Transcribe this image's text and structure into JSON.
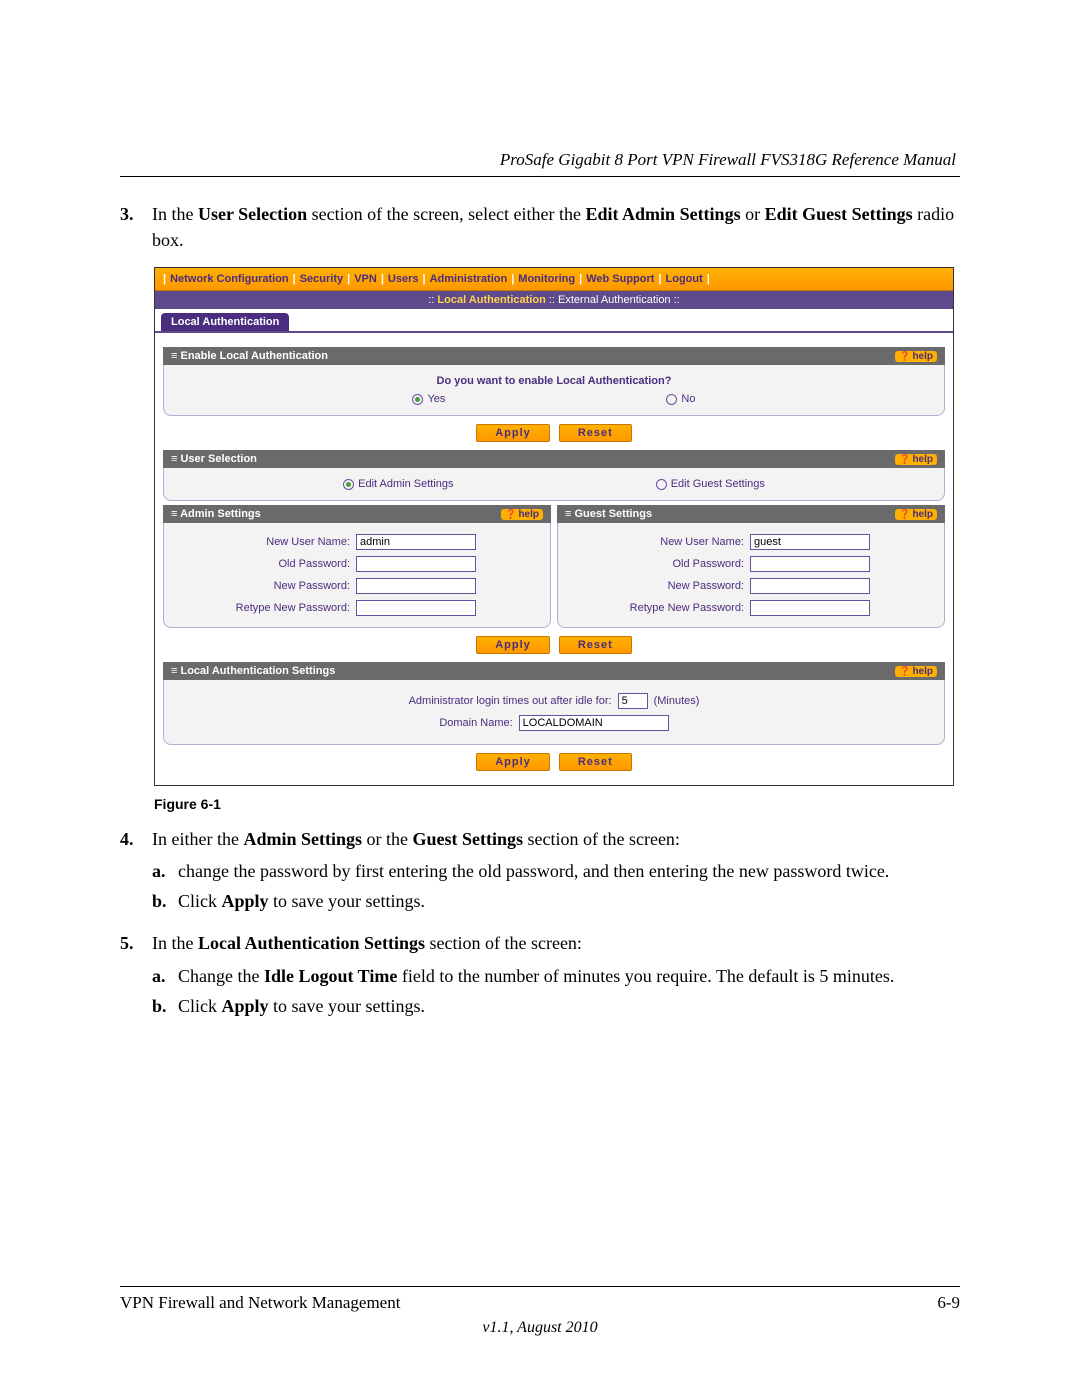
{
  "docTitle": "ProSafe Gigabit 8 Port VPN Firewall FVS318G Reference Manual",
  "step3": {
    "num": "3.",
    "prefix": "In the ",
    "b1": "User Selection",
    "mid1": " section of the screen, select either the ",
    "b2": "Edit Admin Settings",
    "mid2": " or ",
    "b3": "Edit Guest Settings",
    "suffix": " radio box."
  },
  "nav": {
    "items": [
      "Network Configuration",
      "Security",
      "VPN",
      "Users",
      "Administration",
      "Monitoring",
      "Web Support",
      "Logout"
    ],
    "sub_prefix": ":: ",
    "sub_active": "Local Authentication",
    "sub_sep": " :: ",
    "sub_other": "External Authentication",
    "sub_suffix": " ::",
    "tab": "Local Authentication"
  },
  "sec_enable": {
    "title": "Enable Local Authentication",
    "help": "help",
    "question": "Do you want to enable Local Authentication?",
    "yes": "Yes",
    "no": "No"
  },
  "buttons": {
    "apply": "Apply",
    "reset": "Reset"
  },
  "sec_user": {
    "title": "User Selection",
    "help": "help",
    "opt1": "Edit Admin Settings",
    "opt2": "Edit Guest Settings"
  },
  "sec_admin": {
    "title": "Admin Settings",
    "help": "help",
    "f1": "New User Name:",
    "v1": "admin",
    "f2": "Old Password:",
    "f3": "New Password:",
    "f4": "Retype New Password:"
  },
  "sec_guest": {
    "title": "Guest Settings",
    "help": "help",
    "f1": "New User Name:",
    "v1": "guest",
    "f2": "Old Password:",
    "f3": "New Password:",
    "f4": "Retype New Password:"
  },
  "sec_local": {
    "title": "Local Authentication Settings",
    "help": "help",
    "idle_label": "Administrator login times out after idle for:",
    "idle_value": "5",
    "idle_unit": "(Minutes)",
    "domain_label": "Domain Name:",
    "domain_value": "LOCALDOMAIN"
  },
  "figCaption": "Figure 6-1",
  "step4": {
    "num": "4.",
    "prefix": "In either the ",
    "b1": "Admin Settings",
    "mid1": " or the ",
    "b2": "Guest Settings",
    "suffix": " section of the screen:",
    "a_num": "a.",
    "a_text": "change the password by first entering the old password, and then entering the new password twice.",
    "b_num": "b.",
    "b_pre": "Click ",
    "b_bold": "Apply",
    "b_post": " to save your settings."
  },
  "step5": {
    "num": "5.",
    "prefix": "In the ",
    "b1": "Local Authentication Settings",
    "suffix": " section of the screen:",
    "a_num": "a.",
    "a_pre": "Change the ",
    "a_bold": "Idle Logout Time",
    "a_post": " field to the number of minutes you require. The default is 5 minutes.",
    "b_num": "b.",
    "b_pre": "Click ",
    "b_bold": "Apply",
    "b_post": " to save your settings."
  },
  "footer": {
    "left": "VPN Firewall and Network Management",
    "right": "6-9",
    "version": "v1.1, August 2010"
  }
}
